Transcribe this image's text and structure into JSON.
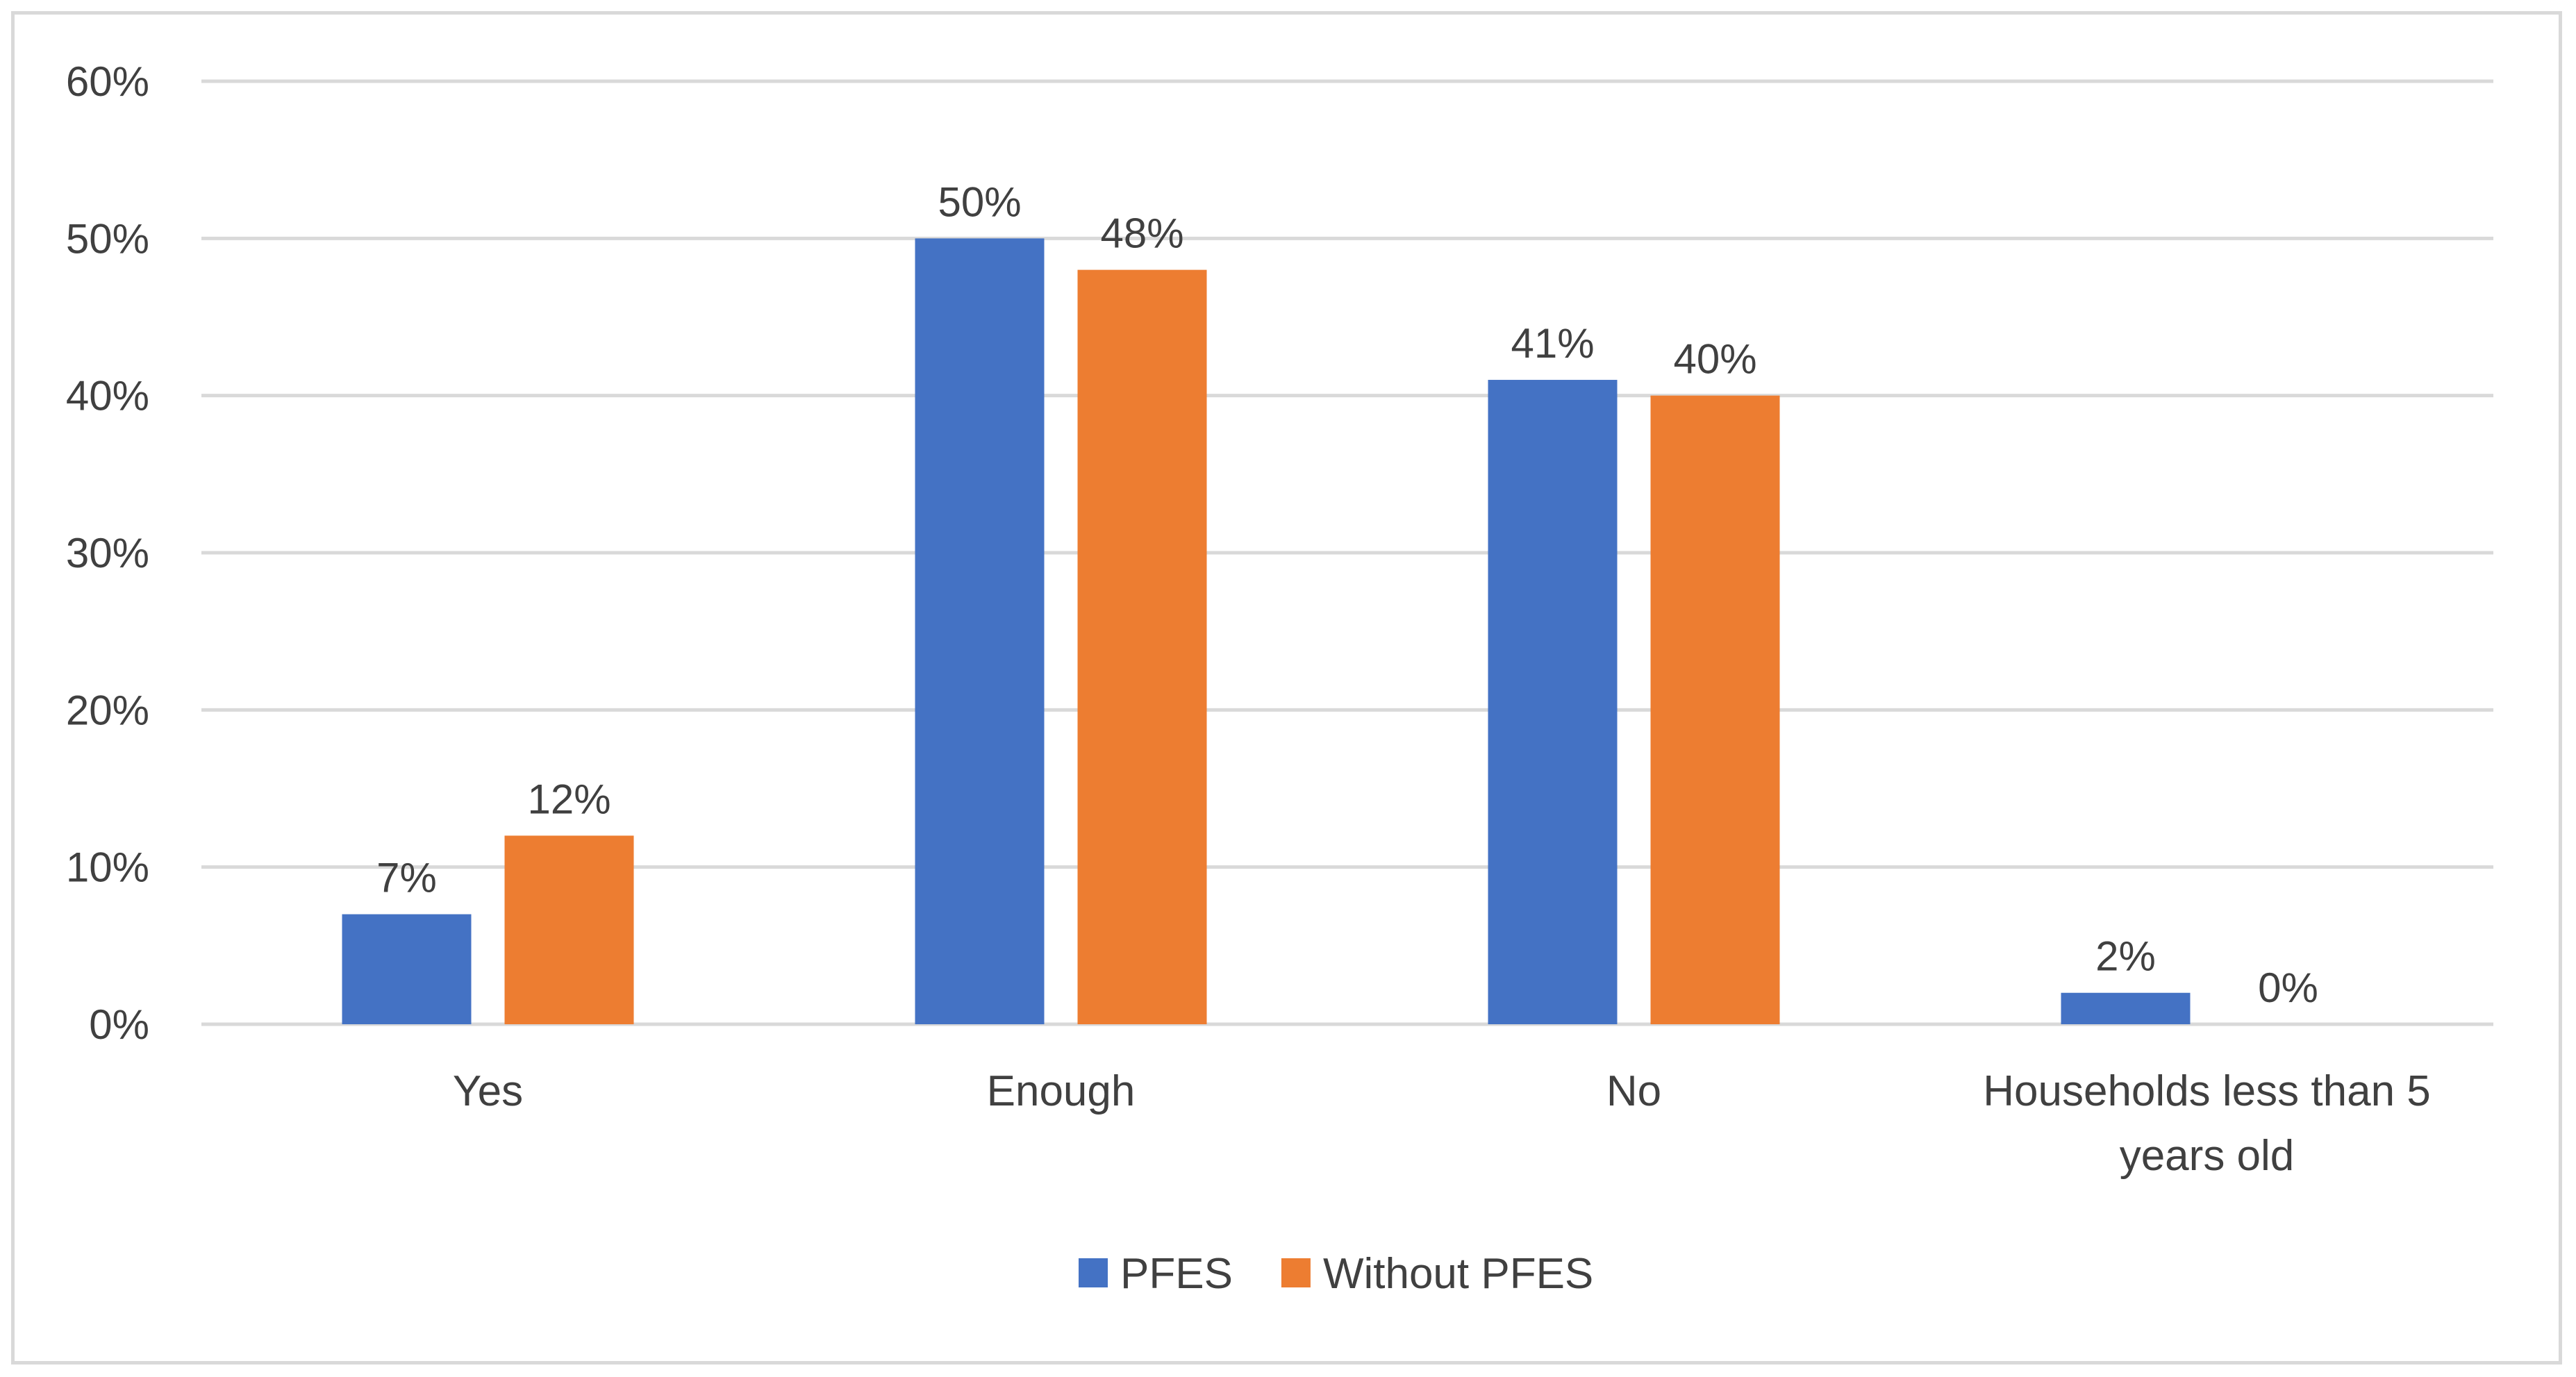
{
  "chart_data": {
    "type": "bar",
    "title": "",
    "xlabel": "",
    "ylabel": "",
    "ylim": [
      0,
      60
    ],
    "yticks": [
      "0%",
      "10%",
      "20%",
      "30%",
      "40%",
      "50%",
      "60%"
    ],
    "ytick_values": [
      0,
      10,
      20,
      30,
      40,
      50,
      60
    ],
    "grid": true,
    "legend_position": "bottom",
    "categories": [
      [
        "Yes"
      ],
      [
        "Enough"
      ],
      [
        "No"
      ],
      [
        "Households less than 5",
        "years old"
      ]
    ],
    "series": [
      {
        "name": "PFES",
        "color": "#4472c4",
        "values": [
          7,
          50,
          41,
          2
        ],
        "labels": [
          "7%",
          "50%",
          "41%",
          "2%"
        ]
      },
      {
        "name": "Without PFES",
        "color": "#ed7d31",
        "values": [
          12,
          48,
          40,
          0
        ],
        "labels": [
          "12%",
          "48%",
          "40%",
          "0%"
        ]
      }
    ]
  }
}
